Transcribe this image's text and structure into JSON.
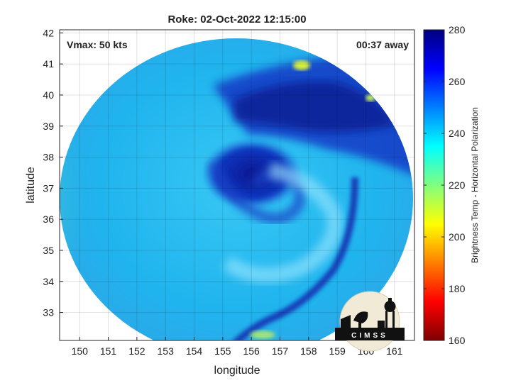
{
  "chart_data": {
    "type": "heatmap",
    "title": "Roke: 02-Oct-2022 12:15:00",
    "xlabel": "longitude",
    "ylabel": "latitude",
    "xlim": [
      149.3,
      161.7
    ],
    "ylim": [
      32.1,
      42.1
    ],
    "xticks": [
      150,
      151,
      152,
      153,
      154,
      155,
      156,
      157,
      158,
      159,
      160,
      161
    ],
    "yticks": [
      33,
      34,
      35,
      36,
      37,
      38,
      39,
      40,
      41,
      42
    ],
    "grid": true,
    "annotations": {
      "vmax": "Vmax: 50 kts",
      "time_away": "00:37 away"
    },
    "colorbar": {
      "label": "Brightness Temp - Horizontal Polarization",
      "range": [
        160,
        280
      ],
      "ticks": [
        160,
        180,
        200,
        220,
        240,
        260,
        280
      ],
      "colormap": "jet"
    },
    "swath_center": [
      155.5,
      37.1
    ],
    "eye_center": [
      155.9,
      37.3
    ]
  },
  "logo": {
    "text": "CIMSS"
  },
  "colors": {
    "swath_bg": "#1ab8f0",
    "cold_core": "#0a1f9a",
    "grid": "#cccccc"
  }
}
